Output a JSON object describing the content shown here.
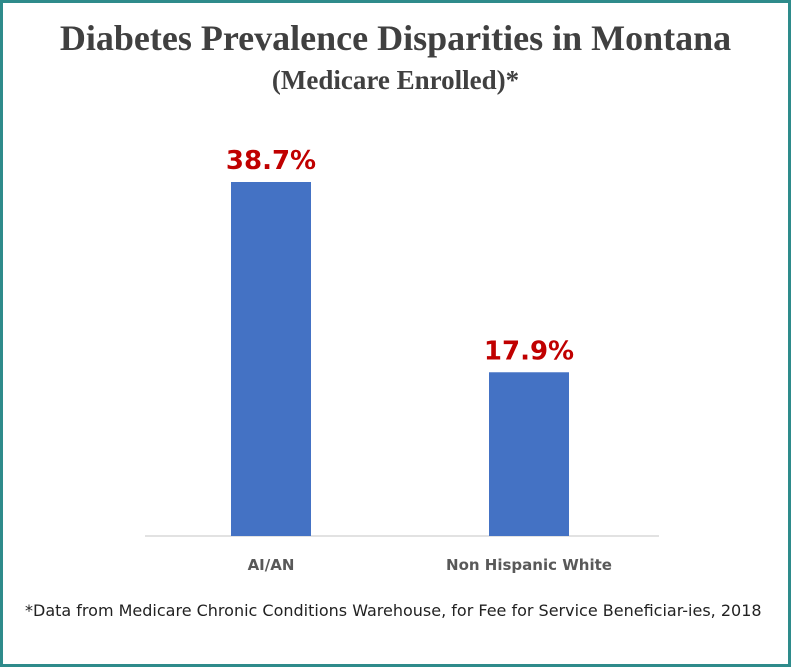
{
  "chart_data": {
    "type": "bar",
    "title": "Diabetes Prevalence Disparities in Montana",
    "subtitle": "(Medicare Enrolled)*",
    "categories": [
      "AI/AN",
      "Non Hispanic White"
    ],
    "values": [
      38.7,
      17.9
    ],
    "data_labels": [
      "38.7%",
      "17.9%"
    ],
    "xlabel": "",
    "ylabel": "",
    "ylim": [
      0,
      40
    ],
    "grid": false,
    "legend": "none",
    "bar_color": "#4472c4",
    "label_color": "#c00000"
  },
  "footnote": "*Data from Medicare Chronic Conditions Warehouse, for Fee for Service Beneficiar-ies, 2018",
  "colors": {
    "border": "#2e8b8b",
    "title": "#404040",
    "axis": "#d9d9d9",
    "category_label": "#595959"
  }
}
